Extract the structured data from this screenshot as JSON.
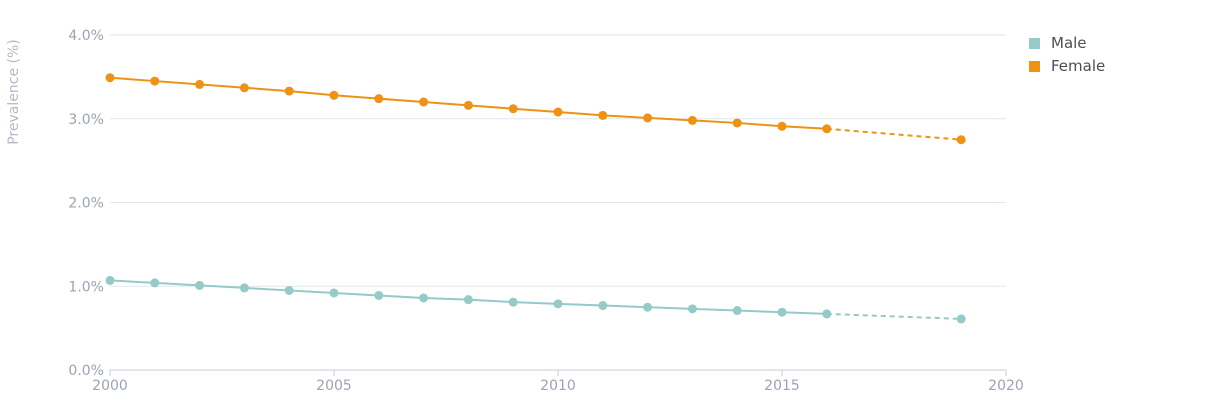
{
  "chart_data": {
    "type": "line",
    "title": "",
    "xlabel": "",
    "ylabel": "Prevalence (%)",
    "xlim": [
      2000,
      2020
    ],
    "ylim": [
      0,
      4
    ],
    "x_ticks": [
      "2000",
      "2005",
      "2010",
      "2015",
      "2020"
    ],
    "y_ticks": [
      "0.0%",
      "1.0%",
      "2.0%",
      "3.0%",
      "4.0%"
    ],
    "grid": "horizontal",
    "legend_position": "top-right",
    "x": [
      2000,
      2001,
      2002,
      2003,
      2004,
      2005,
      2006,
      2007,
      2008,
      2009,
      2010,
      2011,
      2012,
      2013,
      2014,
      2015,
      2016
    ],
    "projection_x": 2019,
    "series": [
      {
        "name": "Male",
        "color": "#95cac8",
        "values": [
          1.07,
          1.04,
          1.01,
          0.98,
          0.95,
          0.92,
          0.89,
          0.86,
          0.84,
          0.81,
          0.79,
          0.77,
          0.75,
          0.73,
          0.71,
          0.69,
          0.67
        ],
        "projection_value": 0.61
      },
      {
        "name": "Female",
        "color": "#ee9215",
        "values": [
          3.49,
          3.45,
          3.41,
          3.37,
          3.33,
          3.28,
          3.24,
          3.2,
          3.16,
          3.12,
          3.08,
          3.04,
          3.01,
          2.98,
          2.95,
          2.91,
          2.88
        ],
        "projection_value": 2.75
      }
    ]
  }
}
